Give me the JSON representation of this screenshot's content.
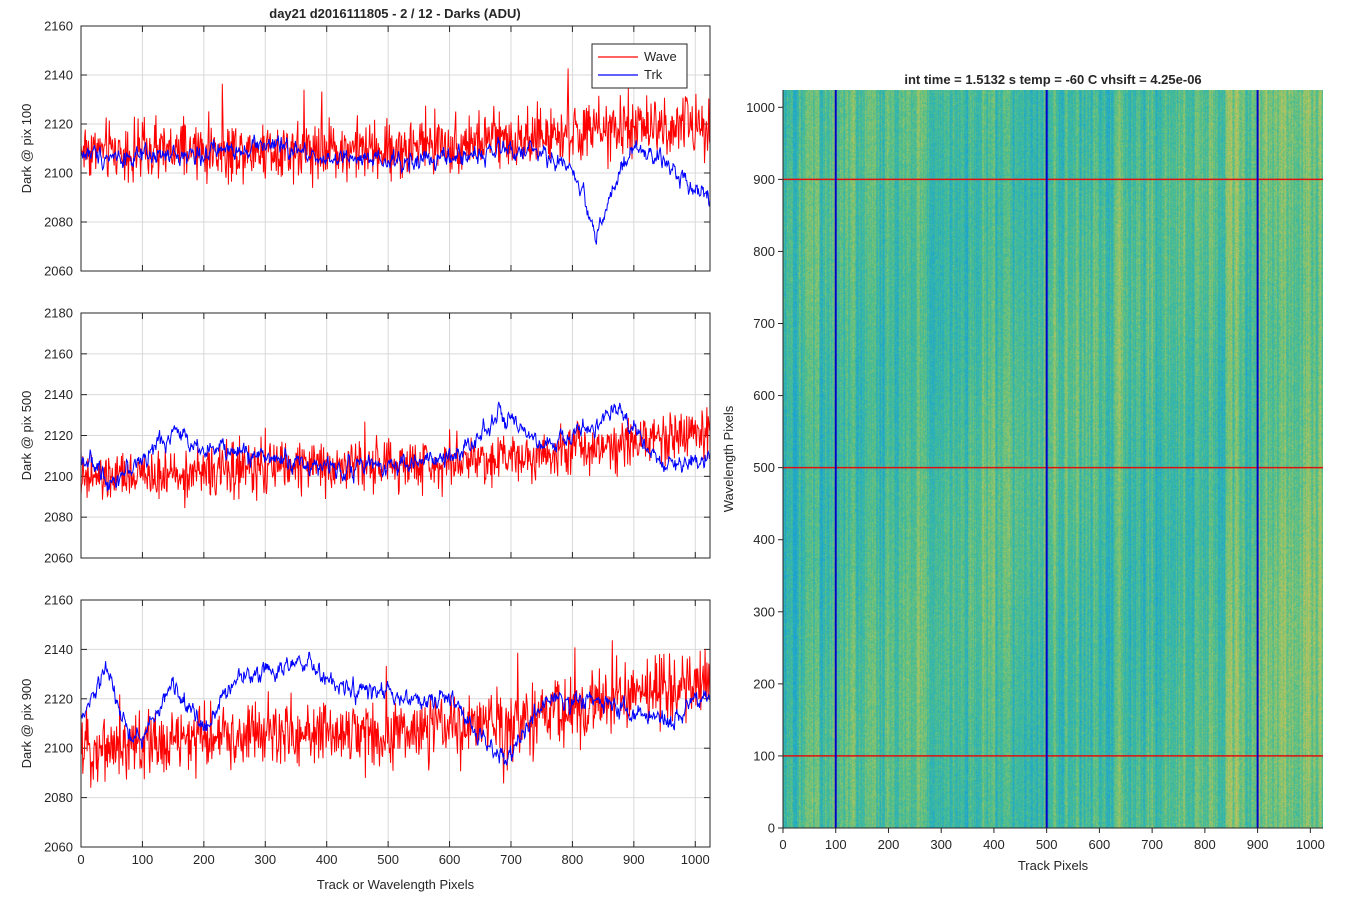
{
  "figure": {
    "title": "day21 d2016111805 - 2 / 12 - Darks (ADU)"
  },
  "chart_data": [
    {
      "type": "line",
      "ylabel": "Dark @ pix 100",
      "xlabel": "",
      "xlim": [
        0,
        1024
      ],
      "ylim": [
        2060,
        2160
      ],
      "xticks": [
        0,
        100,
        200,
        300,
        400,
        500,
        600,
        700,
        800,
        900,
        1000
      ],
      "yticks": [
        2060,
        2080,
        2100,
        2120,
        2140,
        2160
      ],
      "show_xtick_labels": false,
      "grid": true,
      "legend": {
        "placement": "top-right",
        "entries": [
          "Wave",
          "Trk"
        ]
      },
      "series": [
        {
          "name": "Wave",
          "color": "#ff0000",
          "x": [
            0,
            100,
            200,
            300,
            400,
            500,
            600,
            700,
            800,
            900,
            1024
          ],
          "values": [
            2110,
            2108,
            2109,
            2110,
            2110,
            2109,
            2112,
            2114,
            2116,
            2118,
            2120
          ],
          "spread": 10
        },
        {
          "name": "Trk",
          "color": "#0000ff",
          "x": [
            0,
            100,
            200,
            300,
            400,
            500,
            600,
            700,
            750,
            800,
            840,
            860,
            900,
            950,
            1024
          ],
          "values": [
            2108,
            2106,
            2108,
            2112,
            2106,
            2104,
            2106,
            2110,
            2108,
            2102,
            2075,
            2090,
            2110,
            2104,
            2090
          ],
          "spread": 5
        }
      ]
    },
    {
      "type": "line",
      "ylabel": "Dark @ pix 500",
      "xlabel": "",
      "xlim": [
        0,
        1024
      ],
      "ylim": [
        2060,
        2180
      ],
      "xticks": [
        0,
        100,
        200,
        300,
        400,
        500,
        600,
        700,
        800,
        900,
        1000
      ],
      "yticks": [
        2060,
        2080,
        2100,
        2120,
        2140,
        2160,
        2180
      ],
      "show_xtick_labels": false,
      "grid": true,
      "series": [
        {
          "name": "Wave",
          "color": "#ff0000",
          "x": [
            0,
            100,
            200,
            300,
            400,
            500,
            600,
            700,
            800,
            900,
            1024
          ],
          "values": [
            2098,
            2100,
            2102,
            2104,
            2106,
            2105,
            2107,
            2110,
            2113,
            2118,
            2122
          ],
          "spread": 10
        },
        {
          "name": "Trk",
          "color": "#0000ff",
          "x": [
            0,
            50,
            100,
            150,
            200,
            300,
            400,
            500,
            600,
            680,
            750,
            800,
            880,
            950,
            1024
          ],
          "values": [
            2110,
            2098,
            2108,
            2122,
            2114,
            2110,
            2104,
            2106,
            2108,
            2130,
            2114,
            2120,
            2132,
            2104,
            2110
          ],
          "spread": 6
        }
      ]
    },
    {
      "type": "line",
      "ylabel": "Dark @ pix 900",
      "xlabel": "Track or Wavelength Pixels",
      "xlim": [
        0,
        1024
      ],
      "ylim": [
        2060,
        2160
      ],
      "xticks": [
        0,
        100,
        200,
        300,
        400,
        500,
        600,
        700,
        800,
        900,
        1000
      ],
      "yticks": [
        2060,
        2080,
        2100,
        2120,
        2140,
        2160
      ],
      "show_xtick_labels": true,
      "grid": true,
      "series": [
        {
          "name": "Wave",
          "color": "#ff0000",
          "x": [
            0,
            100,
            200,
            300,
            400,
            500,
            600,
            700,
            800,
            900,
            1024
          ],
          "values": [
            2100,
            2102,
            2104,
            2106,
            2106,
            2106,
            2108,
            2110,
            2115,
            2122,
            2126
          ],
          "spread": 11
        },
        {
          "name": "Trk",
          "color": "#0000ff",
          "x": [
            0,
            40,
            80,
            100,
            150,
            200,
            250,
            300,
            370,
            420,
            500,
            550,
            600,
            690,
            750,
            850,
            900,
            950,
            1024
          ],
          "values": [
            2110,
            2132,
            2104,
            2104,
            2126,
            2108,
            2128,
            2132,
            2134,
            2124,
            2122,
            2118,
            2120,
            2094,
            2118,
            2120,
            2114,
            2110,
            2122
          ],
          "spread": 5
        }
      ]
    },
    {
      "type": "heatmap",
      "title": "int time = 1.5132 s    temp = -60 C    vhsift = 4.25e-06",
      "xlabel": "Track Pixels",
      "ylabel": "Wavelength Pixels",
      "xlim": [
        0,
        1024
      ],
      "ylim": [
        0,
        1024
      ],
      "xticks": [
        0,
        100,
        200,
        300,
        400,
        500,
        600,
        700,
        800,
        900,
        1000
      ],
      "yticks": [
        0,
        100,
        200,
        300,
        400,
        500,
        600,
        700,
        800,
        900,
        1000
      ],
      "colormap": [
        "#1a9fd6",
        "#2eb3b5",
        "#4cbd8f",
        "#8ac46c",
        "#c6c25c"
      ],
      "vertical_lines": {
        "x": [
          100,
          500,
          900
        ],
        "color": "#0000cc"
      },
      "horizontal_lines": {
        "y": [
          100,
          500,
          900
        ],
        "color": "#e01010"
      }
    }
  ]
}
